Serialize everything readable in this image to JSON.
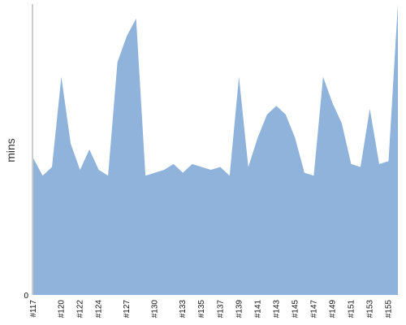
{
  "chart_data": {
    "type": "area",
    "title": "",
    "xlabel": "",
    "ylabel": "mins",
    "ylim": [
      0,
      100
    ],
    "y_ticks": [
      {
        "value": 0,
        "label": "0"
      }
    ],
    "grid": false,
    "legend": "none",
    "fill_color": "#8fb3db",
    "axis_color": "#999999",
    "x_labels_shown": [
      "#117",
      "#120",
      "#122",
      "#124",
      "#127",
      "#130",
      "#133",
      "#135",
      "#137",
      "#139",
      "#141",
      "#143",
      "#145",
      "#147",
      "#149",
      "#151",
      "#153",
      "#155"
    ],
    "points": [
      {
        "x": "#117",
        "y": 47
      },
      {
        "x": "#118",
        "y": 41
      },
      {
        "x": "#119",
        "y": 44
      },
      {
        "x": "#120",
        "y": 75
      },
      {
        "x": "#121",
        "y": 52
      },
      {
        "x": "#122",
        "y": 43
      },
      {
        "x": "#123",
        "y": 50
      },
      {
        "x": "#124",
        "y": 43
      },
      {
        "x": "#125",
        "y": 41
      },
      {
        "x": "#126",
        "y": 80
      },
      {
        "x": "#127",
        "y": 89
      },
      {
        "x": "#128",
        "y": 95
      },
      {
        "x": "#129",
        "y": 41
      },
      {
        "x": "#130",
        "y": 42
      },
      {
        "x": "#131",
        "y": 43
      },
      {
        "x": "#132",
        "y": 45
      },
      {
        "x": "#133",
        "y": 42
      },
      {
        "x": "#134",
        "y": 45
      },
      {
        "x": "#135",
        "y": 44
      },
      {
        "x": "#136",
        "y": 43
      },
      {
        "x": "#137",
        "y": 44
      },
      {
        "x": "#138",
        "y": 41
      },
      {
        "x": "#139",
        "y": 75
      },
      {
        "x": "#140",
        "y": 44
      },
      {
        "x": "#141",
        "y": 54
      },
      {
        "x": "#142",
        "y": 62
      },
      {
        "x": "#143",
        "y": 65
      },
      {
        "x": "#144",
        "y": 62
      },
      {
        "x": "#145",
        "y": 54
      },
      {
        "x": "#146",
        "y": 42
      },
      {
        "x": "#147",
        "y": 41
      },
      {
        "x": "#148",
        "y": 75
      },
      {
        "x": "#149",
        "y": 66
      },
      {
        "x": "#150",
        "y": 59
      },
      {
        "x": "#151",
        "y": 45
      },
      {
        "x": "#152",
        "y": 44
      },
      {
        "x": "#153",
        "y": 64
      },
      {
        "x": "#154",
        "y": 45
      },
      {
        "x": "#155",
        "y": 46
      },
      {
        "x": "#156",
        "y": 100
      }
    ]
  }
}
